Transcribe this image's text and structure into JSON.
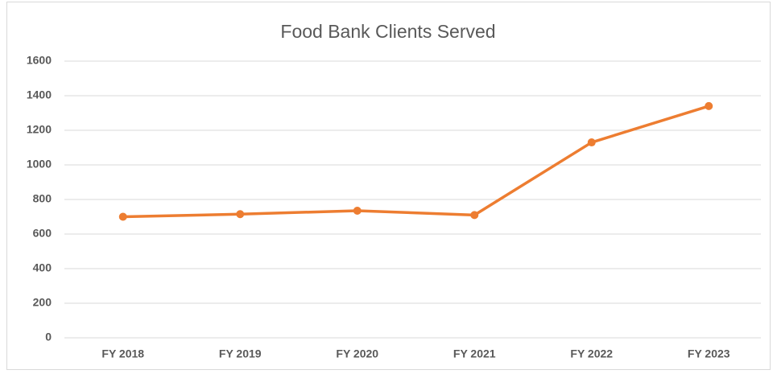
{
  "chart_data": {
    "type": "line",
    "title": "Food Bank Clients Served",
    "categories": [
      "FY 2018",
      "FY 2019",
      "FY 2020",
      "FY 2021",
      "FY 2022",
      "FY 2023"
    ],
    "series": [
      {
        "name": "Clients Served",
        "color": "#ed7d31",
        "values": [
          700,
          715,
          735,
          710,
          1130,
          1340
        ]
      }
    ],
    "ylim": [
      0,
      1600
    ],
    "yticks": [
      0,
      200,
      400,
      600,
      800,
      1000,
      1200,
      1400,
      1600
    ],
    "grid": true
  }
}
